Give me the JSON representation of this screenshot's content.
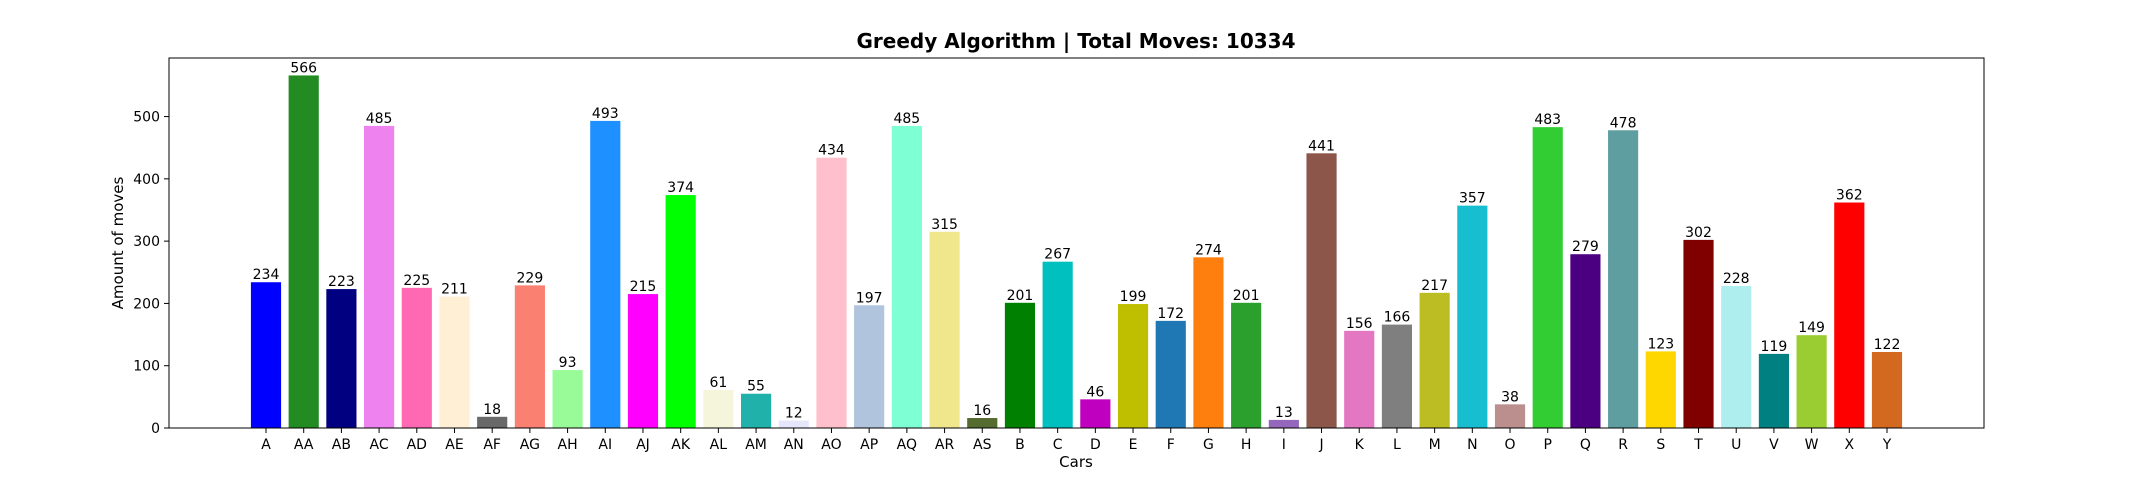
{
  "chart_data": {
    "type": "bar",
    "title": "Greedy Algorithm | Total Moves: 10334",
    "xlabel": "Cars",
    "ylabel": "Amount of moves",
    "ylim": [
      0,
      594
    ],
    "yticks": [
      0,
      100,
      200,
      300,
      400,
      500
    ],
    "grid": false,
    "legend": "none",
    "categories": [
      "A",
      "AA",
      "AB",
      "AC",
      "AD",
      "AE",
      "AF",
      "AG",
      "AH",
      "AI",
      "AJ",
      "AK",
      "AL",
      "AM",
      "AN",
      "AO",
      "AP",
      "AQ",
      "AR",
      "AS",
      "B",
      "C",
      "D",
      "E",
      "F",
      "G",
      "H",
      "I",
      "J",
      "K",
      "L",
      "M",
      "N",
      "O",
      "P",
      "Q",
      "R",
      "S",
      "T",
      "U",
      "V",
      "W",
      "X",
      "Y"
    ],
    "values": [
      234,
      566,
      223,
      485,
      225,
      211,
      18,
      229,
      93,
      493,
      215,
      374,
      61,
      55,
      12,
      434,
      197,
      485,
      315,
      16,
      201,
      267,
      46,
      199,
      172,
      274,
      201,
      13,
      441,
      156,
      166,
      217,
      357,
      38,
      483,
      279,
      478,
      123,
      302,
      228,
      119,
      149,
      362,
      122
    ],
    "colors": [
      "#0000ff",
      "#228b22",
      "#000080",
      "#ee82ee",
      "#ff69b4",
      "#ffefd5",
      "#696969",
      "#fa8072",
      "#98fb98",
      "#1e90ff",
      "#ff00ff",
      "#00ff00",
      "#f5f5dc",
      "#20b2aa",
      "#e6e6fa",
      "#ffc0cb",
      "#b0c4de",
      "#7fffd4",
      "#f0e68c",
      "#556b2f",
      "#008000",
      "#00bfbf",
      "#bf00bf",
      "#bfbf00",
      "#1f77b4",
      "#ff7f0e",
      "#2ca02c",
      "#9467bd",
      "#8c564b",
      "#e377c2",
      "#7f7f7f",
      "#bcbd22",
      "#17becf",
      "#bc8f8f",
      "#32cd32",
      "#4b0082",
      "#5f9ea0",
      "#ffd700",
      "#800000",
      "#afeeee",
      "#008080",
      "#9acd32",
      "#ff0000",
      "#d2691e"
    ]
  }
}
